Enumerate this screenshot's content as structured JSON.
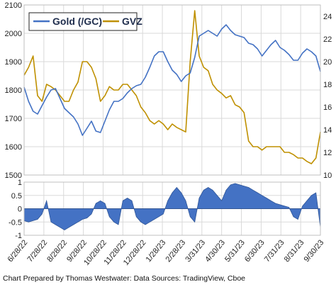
{
  "credit": "Chart Prepared by Thomas Westwater: Data Sources: TradingView, Cboe",
  "colors": {
    "gold": "#4472c4",
    "gvz": "#bf9000",
    "corr_fill": "#4472c4",
    "grid": "#d9d9d9",
    "zero": "#555555"
  },
  "chart_data": [
    {
      "type": "line",
      "title": "",
      "legend": {
        "placement": "top-left",
        "entries": [
          "Gold (/GC)",
          "GVZ"
        ]
      },
      "grid": true,
      "x": [
        "6/28/22",
        "7/5/22",
        "7/12/22",
        "7/19/22",
        "7/26/22",
        "8/2/22",
        "8/9/22",
        "8/16/22",
        "8/23/22",
        "8/30/22",
        "9/6/22",
        "9/13/22",
        "9/20/22",
        "9/27/22",
        "10/4/22",
        "10/11/22",
        "10/18/22",
        "10/25/22",
        "11/1/22",
        "11/8/22",
        "11/15/22",
        "11/22/22",
        "11/29/22",
        "12/6/22",
        "12/13/22",
        "12/20/22",
        "12/27/22",
        "1/3/23",
        "1/10/23",
        "1/17/23",
        "1/24/23",
        "1/31/23",
        "2/7/23",
        "2/14/23",
        "2/21/23",
        "2/28/23",
        "3/7/23",
        "3/14/23",
        "3/21/23",
        "3/28/23",
        "4/4/23",
        "4/11/23",
        "4/18/23",
        "4/25/23",
        "5/2/23",
        "5/9/23",
        "5/16/23",
        "5/23/23",
        "5/30/23",
        "6/6/23",
        "6/13/23",
        "6/20/23",
        "6/27/23",
        "7/4/23",
        "7/11/23",
        "7/18/23",
        "7/25/23",
        "8/1/23",
        "8/8/23",
        "8/15/23",
        "8/22/23",
        "8/29/23",
        "9/5/23",
        "9/12/23",
        "9/19/23",
        "9/26/23",
        "10/2/23"
      ],
      "x_ticks": [
        "6/28/22",
        "7/28/22",
        "8/28/22",
        "9/28/22",
        "10/28/22",
        "11/28/22",
        "12/28/22",
        "1/28/23",
        "2/28/23",
        "3/31/23",
        "4/30/23",
        "5/31/23",
        "6/30/23",
        "7/31/23",
        "8/31/23",
        "9/30/23"
      ],
      "series": [
        {
          "name": "Gold (/GC)",
          "axis": "left",
          "values": [
            1810,
            1760,
            1725,
            1715,
            1745,
            1775,
            1800,
            1805,
            1770,
            1735,
            1720,
            1705,
            1680,
            1640,
            1665,
            1690,
            1655,
            1650,
            1690,
            1730,
            1760,
            1760,
            1770,
            1790,
            1805,
            1815,
            1820,
            1845,
            1880,
            1920,
            1935,
            1935,
            1900,
            1870,
            1855,
            1830,
            1850,
            1860,
            1915,
            1990,
            2000,
            2010,
            2000,
            1990,
            2015,
            2030,
            2010,
            1995,
            1990,
            1985,
            1965,
            1960,
            1945,
            1920,
            1940,
            1960,
            1975,
            1950,
            1940,
            1925,
            1905,
            1905,
            1930,
            1945,
            1935,
            1920,
            1865
          ]
        },
        {
          "name": "GVZ",
          "axis": "right",
          "values": [
            18.8,
            19.5,
            20.5,
            17.0,
            16.5,
            18.0,
            17.8,
            17.5,
            17.0,
            16.5,
            16.5,
            17.5,
            18.2,
            20.0,
            20.0,
            19.5,
            18.5,
            16.5,
            17.0,
            17.8,
            17.5,
            17.5,
            18.0,
            18.0,
            17.5,
            17.0,
            16.0,
            15.5,
            14.8,
            14.5,
            14.8,
            14.5,
            14.0,
            14.5,
            14.2,
            14.0,
            13.8,
            20.0,
            24.5,
            20.5,
            19.5,
            19.2,
            18.0,
            17.5,
            17.2,
            16.8,
            17.0,
            16.2,
            16.0,
            15.5,
            13.0,
            12.5,
            12.5,
            12.2,
            12.5,
            12.5,
            12.5,
            12.5,
            12.0,
            12.0,
            11.8,
            11.5,
            11.5,
            11.2,
            11.0,
            11.5,
            13.8
          ]
        }
      ],
      "y_left": {
        "lim": [
          1500,
          2100
        ],
        "ticks": [
          1500,
          1600,
          1700,
          1800,
          1900,
          2000,
          2100
        ]
      },
      "y_right": {
        "lim": [
          10,
          25
        ],
        "ticks": [
          10,
          12,
          14,
          16,
          18,
          20,
          22,
          24
        ]
      }
    },
    {
      "type": "area",
      "title": "",
      "series": [
        {
          "values": [
            -0.45,
            -0.5,
            -0.45,
            -0.4,
            -0.2,
            0.3,
            -0.5,
            -0.6,
            -0.7,
            -0.8,
            -0.7,
            -0.6,
            -0.5,
            -0.4,
            -0.35,
            -0.2,
            0.2,
            0.3,
            0.2,
            -0.3,
            -0.5,
            -0.6,
            0.3,
            0.4,
            0.3,
            -0.3,
            -0.5,
            -0.6,
            -0.5,
            -0.4,
            -0.3,
            -0.2,
            0.3,
            0.6,
            0.8,
            0.6,
            0.3,
            -0.3,
            -0.5,
            0.4,
            0.7,
            0.8,
            0.7,
            0.5,
            0.3,
            0.7,
            0.9,
            0.95,
            0.9,
            0.85,
            0.8,
            0.7,
            0.6,
            0.5,
            0.4,
            0.3,
            0.2,
            0.15,
            0.1,
            0.05,
            -0.3,
            -0.4,
            0.1,
            0.3,
            0.5,
            0.6,
            -0.7
          ]
        }
      ],
      "y": {
        "lim": [
          -1,
          1
        ],
        "ticks": [
          "1",
          "0.5",
          "0",
          "-0.5",
          "-1"
        ]
      }
    }
  ]
}
